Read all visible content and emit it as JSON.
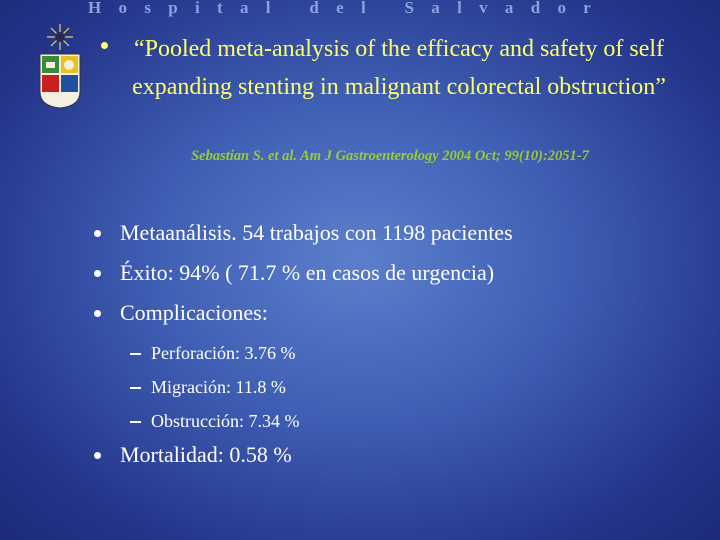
{
  "header": {
    "institution": "Hospital del Salvador"
  },
  "title": {
    "quote": "“Pooled meta-analysis of the efficacy and safety of self expanding stenting in malignant colorectal obstruction”",
    "citation": "Sebastian S. et al. Am J Gastroenterology 2004 Oct; 99(10):2051-7"
  },
  "bullets": [
    {
      "text": "Metaanálisis. 54 trabajos con 1198 pacientes"
    },
    {
      "text": "Éxito: 94% ( 71.7 % en casos de urgencia)"
    },
    {
      "text": "Complicaciones:",
      "children": [
        "Perforación: 3.76 %",
        "Migración: 11.8 %",
        "Obstrucción: 7.34 %"
      ]
    },
    {
      "text": "Mortalidad: 0.58 %"
    }
  ]
}
